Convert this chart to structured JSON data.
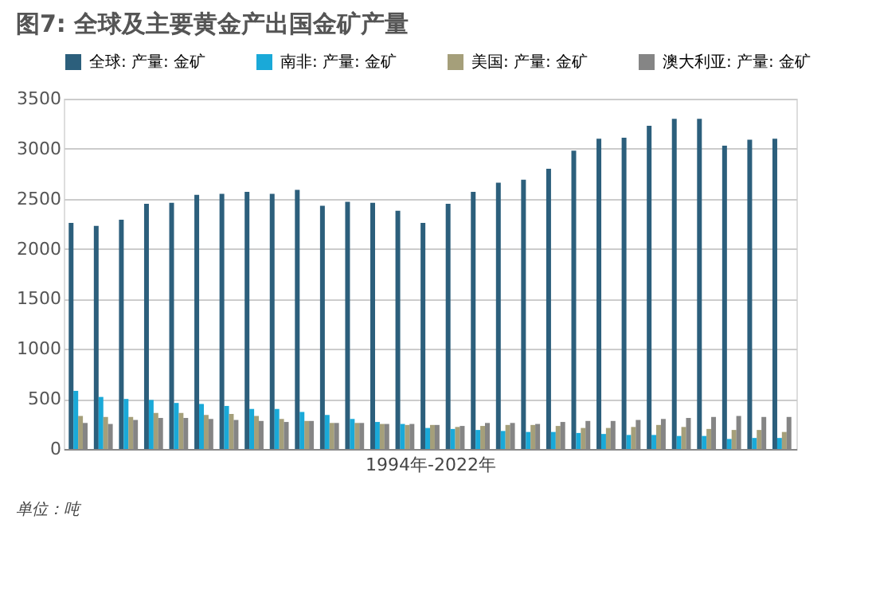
{
  "chart_data": {
    "type": "bar",
    "title": "图7: 全球及主要黄金产出国金矿产量",
    "xlabel": "1994年-2022年",
    "categories": [
      null,
      null,
      null,
      null,
      null,
      null,
      null,
      null,
      null,
      null,
      null,
      null,
      null,
      null,
      null,
      null,
      null,
      null,
      null,
      null,
      null,
      null,
      null,
      null,
      null,
      null,
      null,
      null,
      null
    ],
    "series": [
      {
        "name": "全球: 产量: 金矿",
        "color": "#2c5f7c",
        "values": [
          2260,
          2230,
          2290,
          2450,
          2460,
          2540,
          2550,
          2570,
          2550,
          2590,
          2430,
          2470,
          2460,
          2380,
          2260,
          2450,
          2570,
          2660,
          2690,
          2800,
          2980,
          3100,
          3110,
          3230,
          3300,
          3300,
          3030,
          3090,
          3100
        ]
      },
      {
        "name": "南非: 产量: 金矿",
        "color": "#1aa9d8",
        "values": [
          580,
          520,
          500,
          490,
          460,
          450,
          430,
          400,
          400,
          370,
          340,
          300,
          270,
          250,
          210,
          200,
          190,
          180,
          170,
          170,
          160,
          150,
          140,
          140,
          130,
          130,
          100,
          110,
          110
        ]
      },
      {
        "name": "美国: 产量: 金矿",
        "color": "#a59f7a",
        "values": [
          330,
          320,
          320,
          360,
          360,
          340,
          350,
          330,
          300,
          280,
          260,
          260,
          250,
          240,
          240,
          220,
          230,
          240,
          240,
          230,
          210,
          210,
          220,
          240,
          220,
          200,
          190,
          190,
          170
        ]
      },
      {
        "name": "澳大利亚: 产量: 金矿",
        "color": "#858585",
        "values": [
          260,
          250,
          290,
          310,
          310,
          300,
          290,
          280,
          270,
          280,
          260,
          260,
          250,
          250,
          240,
          230,
          260,
          260,
          250,
          270,
          280,
          280,
          290,
          300,
          310,
          320,
          330,
          320,
          320
        ]
      }
    ],
    "ylim": [
      0,
      3500
    ],
    "yticks": [
      0,
      500,
      1000,
      1500,
      2000,
      2500,
      3000,
      3500
    ],
    "grid": "y",
    "legend": "top",
    "tick_labels": "y",
    "annotations": [
      "单位：吨"
    ]
  }
}
